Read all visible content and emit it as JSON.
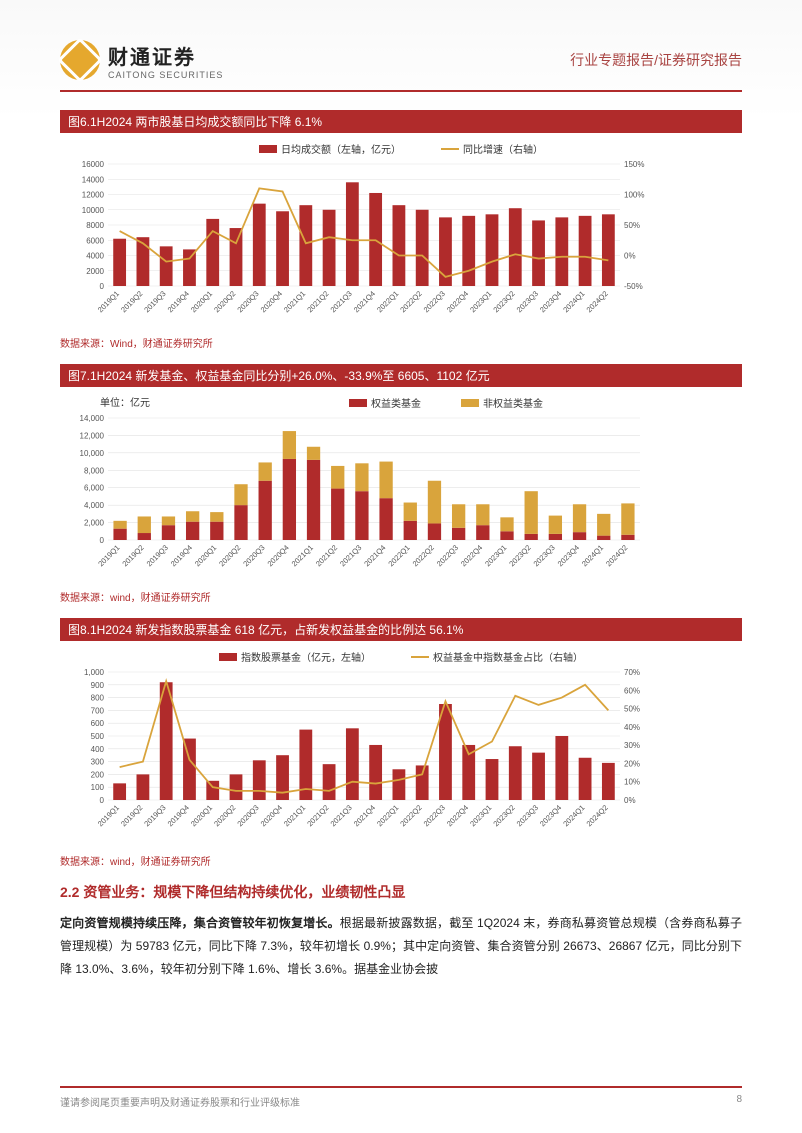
{
  "header": {
    "company_cn": "财通证券",
    "company_en": "CAITONG SECURITIES",
    "doc_type": "行业专题报告/证券研究报告"
  },
  "quarters": [
    "2019Q1",
    "2019Q2",
    "2019Q3",
    "2019Q4",
    "2020Q1",
    "2020Q2",
    "2020Q3",
    "2020Q4",
    "2021Q1",
    "2021Q2",
    "2021Q3",
    "2021Q4",
    "2022Q1",
    "2022Q2",
    "2022Q3",
    "2022Q4",
    "2023Q1",
    "2023Q2",
    "2023Q3",
    "2023Q4",
    "2024Q1",
    "2024Q2"
  ],
  "chart6": {
    "title": "图6.1H2024 两市股基日均成交额同比下降 6.1%",
    "legend_bar": "日均成交额（左轴，亿元）",
    "legend_line": "同比增速（右轴）",
    "bar_color": "#b02b2b",
    "line_color": "#d9a43c",
    "grid_color": "#e2e2e2",
    "ylim_left": [
      0,
      16000
    ],
    "ytick_step_left": 2000,
    "ylim_right": [
      -50,
      150
    ],
    "ytick_step_right": 50,
    "bars": [
      6200,
      6400,
      5200,
      4800,
      8800,
      7600,
      10800,
      9800,
      10600,
      10000,
      13600,
      12200,
      10600,
      10000,
      9000,
      9200,
      9400,
      10200,
      8600,
      9000,
      9200,
      9400
    ],
    "line": [
      40,
      20,
      -10,
      -5,
      40,
      20,
      110,
      105,
      20,
      30,
      25,
      25,
      0,
      0,
      -35,
      -25,
      -10,
      2,
      -5,
      -2,
      -2,
      -8
    ],
    "source": "数据来源：Wind，财通证券研究所"
  },
  "chart7": {
    "title": "图7.1H2024 新发基金、权益基金同比分别+26.0%、-33.9%至 6605、1102 亿元",
    "unit": "单位：亿元",
    "legend_a": "权益类基金",
    "legend_b": "非权益类基金",
    "color_a": "#b02b2b",
    "color_b": "#d9a43c",
    "grid_color": "#e2e2e2",
    "ylim": [
      0,
      14000
    ],
    "ytick_step": 2000,
    "series_a": [
      1300,
      800,
      1700,
      2100,
      2100,
      4000,
      6800,
      9300,
      9200,
      5900,
      5600,
      4800,
      2200,
      1900,
      1400,
      1700,
      1000,
      700,
      700,
      900,
      500,
      600
    ],
    "series_b": [
      900,
      1900,
      1000,
      1200,
      1100,
      2400,
      2100,
      3200,
      1500,
      2600,
      3200,
      4200,
      2100,
      4900,
      2700,
      2400,
      1600,
      4900,
      2100,
      3200,
      2500,
      3600
    ],
    "source": "数据来源：wind，财通证券研究所"
  },
  "chart8": {
    "title": "图8.1H2024 新发指数股票基金 618 亿元，占新发权益基金的比例达 56.1%",
    "legend_bar": "指数股票基金（亿元，左轴）",
    "legend_line": "权益基金中指数基金占比（右轴）",
    "bar_color": "#b02b2b",
    "line_color": "#d9a43c",
    "grid_color": "#e2e2e2",
    "ylim_left": [
      0,
      1000
    ],
    "ytick_step_left": 100,
    "ylim_right": [
      0,
      70
    ],
    "ytick_step_right": 10,
    "bars": [
      130,
      200,
      920,
      480,
      150,
      200,
      310,
      350,
      550,
      280,
      560,
      430,
      240,
      270,
      750,
      430,
      320,
      420,
      370,
      500,
      330,
      290
    ],
    "line": [
      18,
      21,
      65,
      22,
      7,
      5,
      5,
      4,
      6,
      5,
      10,
      9,
      11,
      14,
      54,
      25,
      32,
      57,
      52,
      56,
      63,
      49
    ],
    "source": "数据来源：wind，财通证券研究所"
  },
  "section": {
    "heading": "2.2 资管业务：规模下降但结构持续优化，业绩韧性凸显",
    "para_bold": "定向资管规模持续压降，集合资管较年初恢复增长。",
    "para_rest": "根据最新披露数据，截至 1Q2024 末，券商私募资管总规模（含券商私募子管理规模）为 59783 亿元，同比下降 7.3%，较年初增长 0.9%；其中定向资管、集合资管分别 26673、26867 亿元，同比分别下降 13.0%、3.6%，较年初分别下降 1.6%、增长 3.6%。据基金业协会披"
  },
  "footer": {
    "disclaimer": "谨请参阅尾页重要声明及财通证券股票和行业评级标准",
    "page": "8"
  }
}
